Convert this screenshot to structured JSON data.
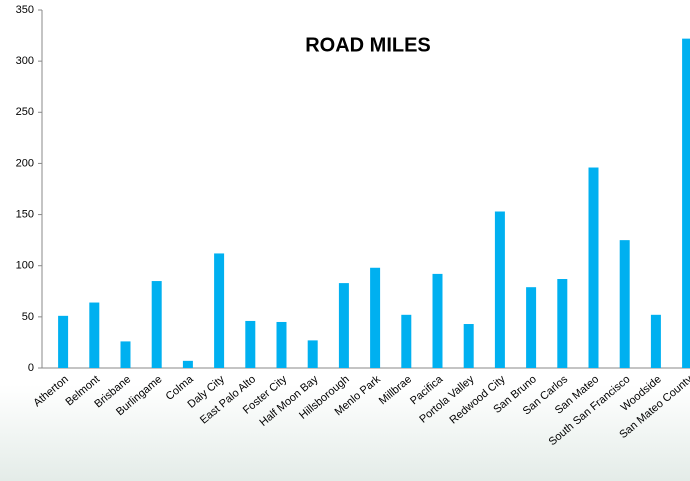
{
  "chart_data": {
    "type": "bar",
    "title": "ROAD MILES",
    "categories": [
      "Atherton",
      "Belmont",
      "Brisbane",
      "Burlingame",
      "Colma",
      "Daly City",
      "East Palo Alto",
      "Foster City",
      "Half Moon Bay",
      "Hillsborough",
      "Menlo Park",
      "Millbrae",
      "Pacifica",
      "Portola Valley",
      "Redwood City",
      "San Bruno",
      "San Carlos",
      "San Mateo",
      "South San Francisco",
      "Woodside",
      "San Mateo County"
    ],
    "values": [
      51,
      64,
      26,
      85,
      7,
      112,
      46,
      45,
      27,
      83,
      98,
      52,
      92,
      43,
      153,
      79,
      87,
      196,
      125,
      52,
      322
    ],
    "color": "#00b0f0",
    "ylim": [
      0,
      350
    ],
    "yticks": [
      0,
      50,
      100,
      150,
      200,
      250,
      300,
      350
    ],
    "grid": false
  }
}
